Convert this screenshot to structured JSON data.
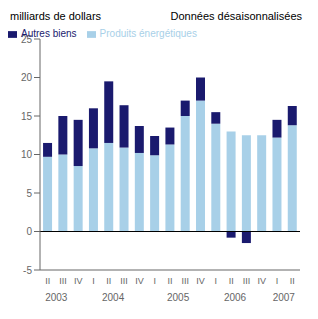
{
  "chart_data": {
    "type": "bar",
    "subtitle": "Données désaisonnalisées",
    "ylabel": "milliards de dollars",
    "categories": [
      "II",
      "III",
      "IV",
      "I",
      "II",
      "III",
      "IV",
      "I",
      "II",
      "III",
      "IV",
      "I",
      "II",
      "III",
      "IV",
      "I",
      "II"
    ],
    "series": [
      {
        "name": "Produits énergétiques",
        "color": "#a8d0e8",
        "values": [
          9.7,
          10.0,
          8.5,
          10.8,
          11.5,
          10.9,
          10.2,
          9.9,
          11.3,
          15.0,
          17.0,
          14.0,
          13.0,
          12.5,
          12.5,
          12.2,
          13.8
        ]
      },
      {
        "name": "Autres biens",
        "color": "#1a1a6e",
        "values": [
          1.8,
          5.0,
          6.0,
          5.2,
          8.0,
          5.5,
          3.5,
          2.5,
          2.2,
          2.0,
          3.0,
          1.5,
          -0.8,
          -1.5,
          0.0,
          2.3,
          2.5
        ]
      }
    ],
    "stacked": true,
    "ylim": [
      -5,
      25
    ],
    "yticks": [
      -5,
      0,
      5,
      10,
      15,
      20,
      25
    ],
    "legend": "upper left",
    "grid": false,
    "annotations": [
      {
        "text": "2003",
        "x": 1
      },
      {
        "text": "2004",
        "x": 4.5
      },
      {
        "text": "2005",
        "x": 8.5
      },
      {
        "text": "2006",
        "x": 12
      },
      {
        "text": "2007",
        "x": 15
      }
    ]
  }
}
